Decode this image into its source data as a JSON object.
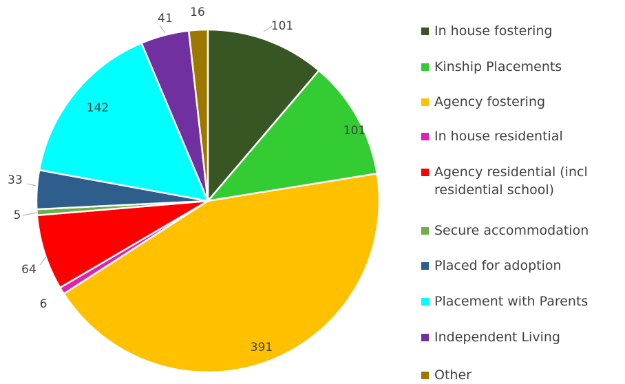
{
  "chart_data": {
    "type": "pie",
    "categories": [
      "In house fostering",
      "Kinship Placements",
      "Agency fostering",
      "In house residential",
      "Agency residential (incl residential school)",
      "Secure accommodation",
      "Placed for adoption",
      "Placement with Parents",
      "Independent Living",
      "Other"
    ],
    "values": [
      101,
      101,
      391,
      6,
      64,
      5,
      33,
      142,
      41,
      16
    ],
    "colors": [
      "#375623",
      "#33cc33",
      "#ffc000",
      "#e020b0",
      "#ff0000",
      "#70ad47",
      "#2e5f8c",
      "#00ffff",
      "#7030a0",
      "#9c7800"
    ],
    "legend": "right"
  }
}
